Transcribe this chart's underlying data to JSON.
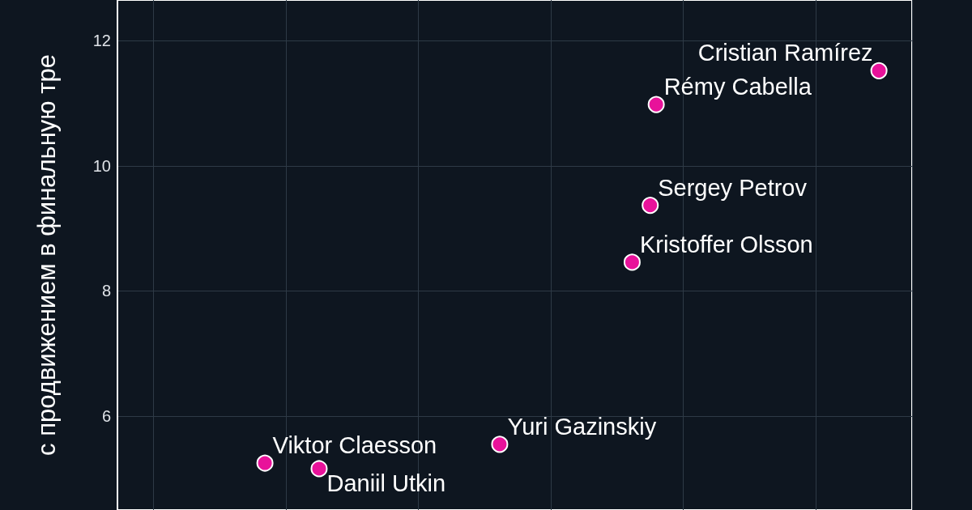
{
  "chart_data": {
    "type": "scatter",
    "ylabel": "с продвижением в финальную тре",
    "categories": [
      null,
      null,
      null,
      null,
      null,
      null,
      null,
      null,
      null,
      null,
      null,
      null,
      null,
      null,
      null,
      null,
      null,
      null,
      null,
      null,
      null,
      null,
      null,
      null,
      null,
      null,
      null,
      null,
      null,
      null,
      null,
      null,
      null,
      null,
      null,
      null,
      null,
      null,
      null,
      null,
      null,
      null,
      null,
      null,
      null,
      null,
      null,
      null,
      null,
      null,
      null,
      null,
      null,
      null,
      null,
      null,
      null,
      null,
      null,
      null,
      null,
      null,
      null,
      null,
      null,
      null,
      null,
      null,
      null,
      null,
      null,
      null,
      null,
      null,
      null,
      null,
      null,
      null,
      null,
      null,
      null,
      null,
      null,
      null,
      null,
      null,
      null,
      null,
      null,
      null,
      null,
      null,
      null,
      null,
      null,
      null,
      null,
      null,
      null,
      null,
      null,
      null,
      null,
      null,
      null,
      null,
      null,
      null,
      null,
      null,
      null,
      null,
      null,
      null,
      null,
      null,
      null,
      null,
      null,
      null,
      null,
      null,
      null,
      null,
      null,
      null,
      null,
      null,
      null,
      null,
      null,
      null
    ],
    "values": [
      null,
      null,
      null,
      null,
      null,
      null,
      null,
      null,
      null,
      null,
      null,
      null,
      null,
      null,
      null,
      null,
      null,
      null,
      null,
      null,
      null,
      null,
      null,
      null,
      5.25,
      null,
      null,
      null,
      null,
      null,
      null,
      null,
      null,
      5.16,
      null,
      null,
      null,
      null,
      null,
      null,
      null,
      null,
      null,
      null,
      null,
      null,
      null,
      null,
      null,
      null,
      null,
      null,
      null,
      null,
      null,
      null,
      null,
      null,
      null,
      null,
      null,
      null,
      null,
      5.55,
      null,
      null,
      null,
      null,
      null,
      null,
      null,
      null,
      null,
      null,
      null,
      null,
      null,
      null,
      null,
      null,
      null,
      null,
      null,
      null,
      null,
      8.46,
      null,
      null,
      9.37,
      10.98,
      null,
      null,
      null,
      null,
      null,
      null,
      null,
      null,
      null,
      null,
      null,
      null,
      null,
      null,
      null,
      null,
      null,
      null,
      null,
      null,
      null,
      null,
      null,
      null,
      null,
      null,
      null,
      null,
      null,
      null,
      null,
      null,
      null,
      null,
      null,
      null,
      11.52,
      null,
      null,
      null,
      null,
      null
    ],
    "color": "#e8129a",
    "marker": "circle",
    "annotations": [
      "Viktor Claesson",
      "Daniil Utkin",
      "Yuri Gazinskiy",
      "Kristoffer Olsson",
      "Sergey Petrov",
      "Rémy Cabella",
      "Cristian Ramírez"
    ],
    "ylim": [
      4.5,
      12.65
    ],
    "yticks": [
      6,
      8,
      10,
      12
    ],
    "grid": true,
    "tick_labels": "y"
  }
}
